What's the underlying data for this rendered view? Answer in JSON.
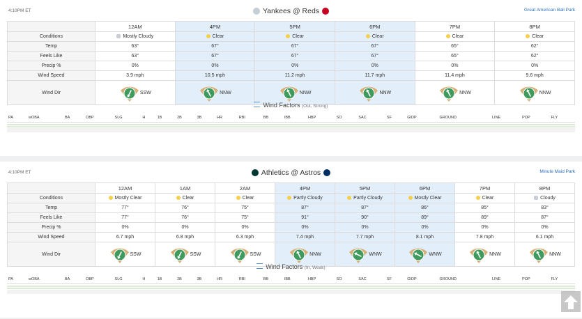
{
  "games": [
    {
      "time": "4:10PM ET",
      "title": "Yankees @ Reds",
      "park": "Great American Ball Park",
      "columns": [
        "12AM",
        "4PM",
        "5PM",
        "6PM",
        "7PM",
        "8PM"
      ],
      "highlighted": [
        false,
        true,
        true,
        true,
        false,
        false
      ],
      "rows": [
        {
          "label": "Conditions",
          "cells": [
            "Mostly Cloudy",
            "Clear",
            "Clear",
            "Clear",
            "Clear",
            "Clear"
          ]
        },
        {
          "label": "Temp",
          "cells": [
            "63°",
            "67°",
            "67°",
            "67°",
            "65°",
            "62°"
          ]
        },
        {
          "label": "Feels Like",
          "cells": [
            "63°",
            "67°",
            "67°",
            "67°",
            "65°",
            "62°"
          ]
        },
        {
          "label": "Precip %",
          "cells": [
            "0%",
            "0%",
            "0%",
            "0%",
            "0%",
            "0%"
          ]
        },
        {
          "label": "Wind Speed",
          "cells": [
            "3.9 mph",
            "10.5 mph",
            "11.2 mph",
            "11.7 mph",
            "11.4 mph",
            "9.6 mph"
          ]
        },
        {
          "label": "Wind Dir",
          "cells": [
            "SSW",
            "NNW",
            "NNW",
            "NNW",
            "NNW",
            "NNW"
          ]
        }
      ],
      "wind_factors": {
        "label": "Wind Factors",
        "note": "(Out, Strong)",
        "columns": [
          "PA",
          "wOBA",
          "BA",
          "OBP",
          "SLG",
          "H",
          "1B",
          "2B",
          "3B",
          "HR",
          "RBI",
          "BB",
          "IBB",
          "HBP",
          "SO",
          "SAC",
          "SF",
          "GIDP",
          "GROUND",
          "LINE",
          "POP",
          "FLY"
        ]
      }
    },
    {
      "time": "4:10PM ET",
      "title": "Athletics @ Astros",
      "park": "Minute Maid Park",
      "columns": [
        "12AM",
        "1AM",
        "2AM",
        "4PM",
        "5PM",
        "6PM",
        "7PM",
        "8PM"
      ],
      "highlighted": [
        false,
        false,
        false,
        true,
        true,
        true,
        false,
        false
      ],
      "rows": [
        {
          "label": "Conditions",
          "cells": [
            "Mostly Clear",
            "Clear",
            "Clear",
            "Partly Cloudy",
            "Partly Cloudy",
            "Mostly Clear",
            "Clear",
            "Cloudy"
          ]
        },
        {
          "label": "Temp",
          "cells": [
            "77°",
            "76°",
            "75°",
            "87°",
            "87°",
            "86°",
            "85°",
            "83°"
          ]
        },
        {
          "label": "Feels Like",
          "cells": [
            "77°",
            "76°",
            "75°",
            "91°",
            "90°",
            "89°",
            "89°",
            "87°"
          ]
        },
        {
          "label": "Precip %",
          "cells": [
            "0%",
            "0%",
            "0%",
            "0%",
            "0%",
            "0%",
            "0%",
            "0%"
          ]
        },
        {
          "label": "Wind Speed",
          "cells": [
            "6.7 mph",
            "6.8 mph",
            "6.3 mph",
            "7.4 mph",
            "7.7 mph",
            "8.1 mph",
            "7.8 mph",
            "6.1 mph"
          ]
        },
        {
          "label": "Wind Dir",
          "cells": [
            "SSW",
            "SSW",
            "SSW",
            "NNW",
            "WNW",
            "WNW",
            "NNW",
            "NNW"
          ]
        }
      ],
      "wind_factors": {
        "label": "Wind Factors",
        "note": "(In, Weak)",
        "columns": [
          "PA",
          "wOBA",
          "BA",
          "OBP",
          "SLG",
          "H",
          "1B",
          "2B",
          "3B",
          "HR",
          "RBI",
          "BB",
          "IBB",
          "HBP",
          "SO",
          "SAC",
          "SF",
          "GIDP",
          "GROUND",
          "LINE",
          "POP",
          "FLY"
        ]
      }
    }
  ]
}
